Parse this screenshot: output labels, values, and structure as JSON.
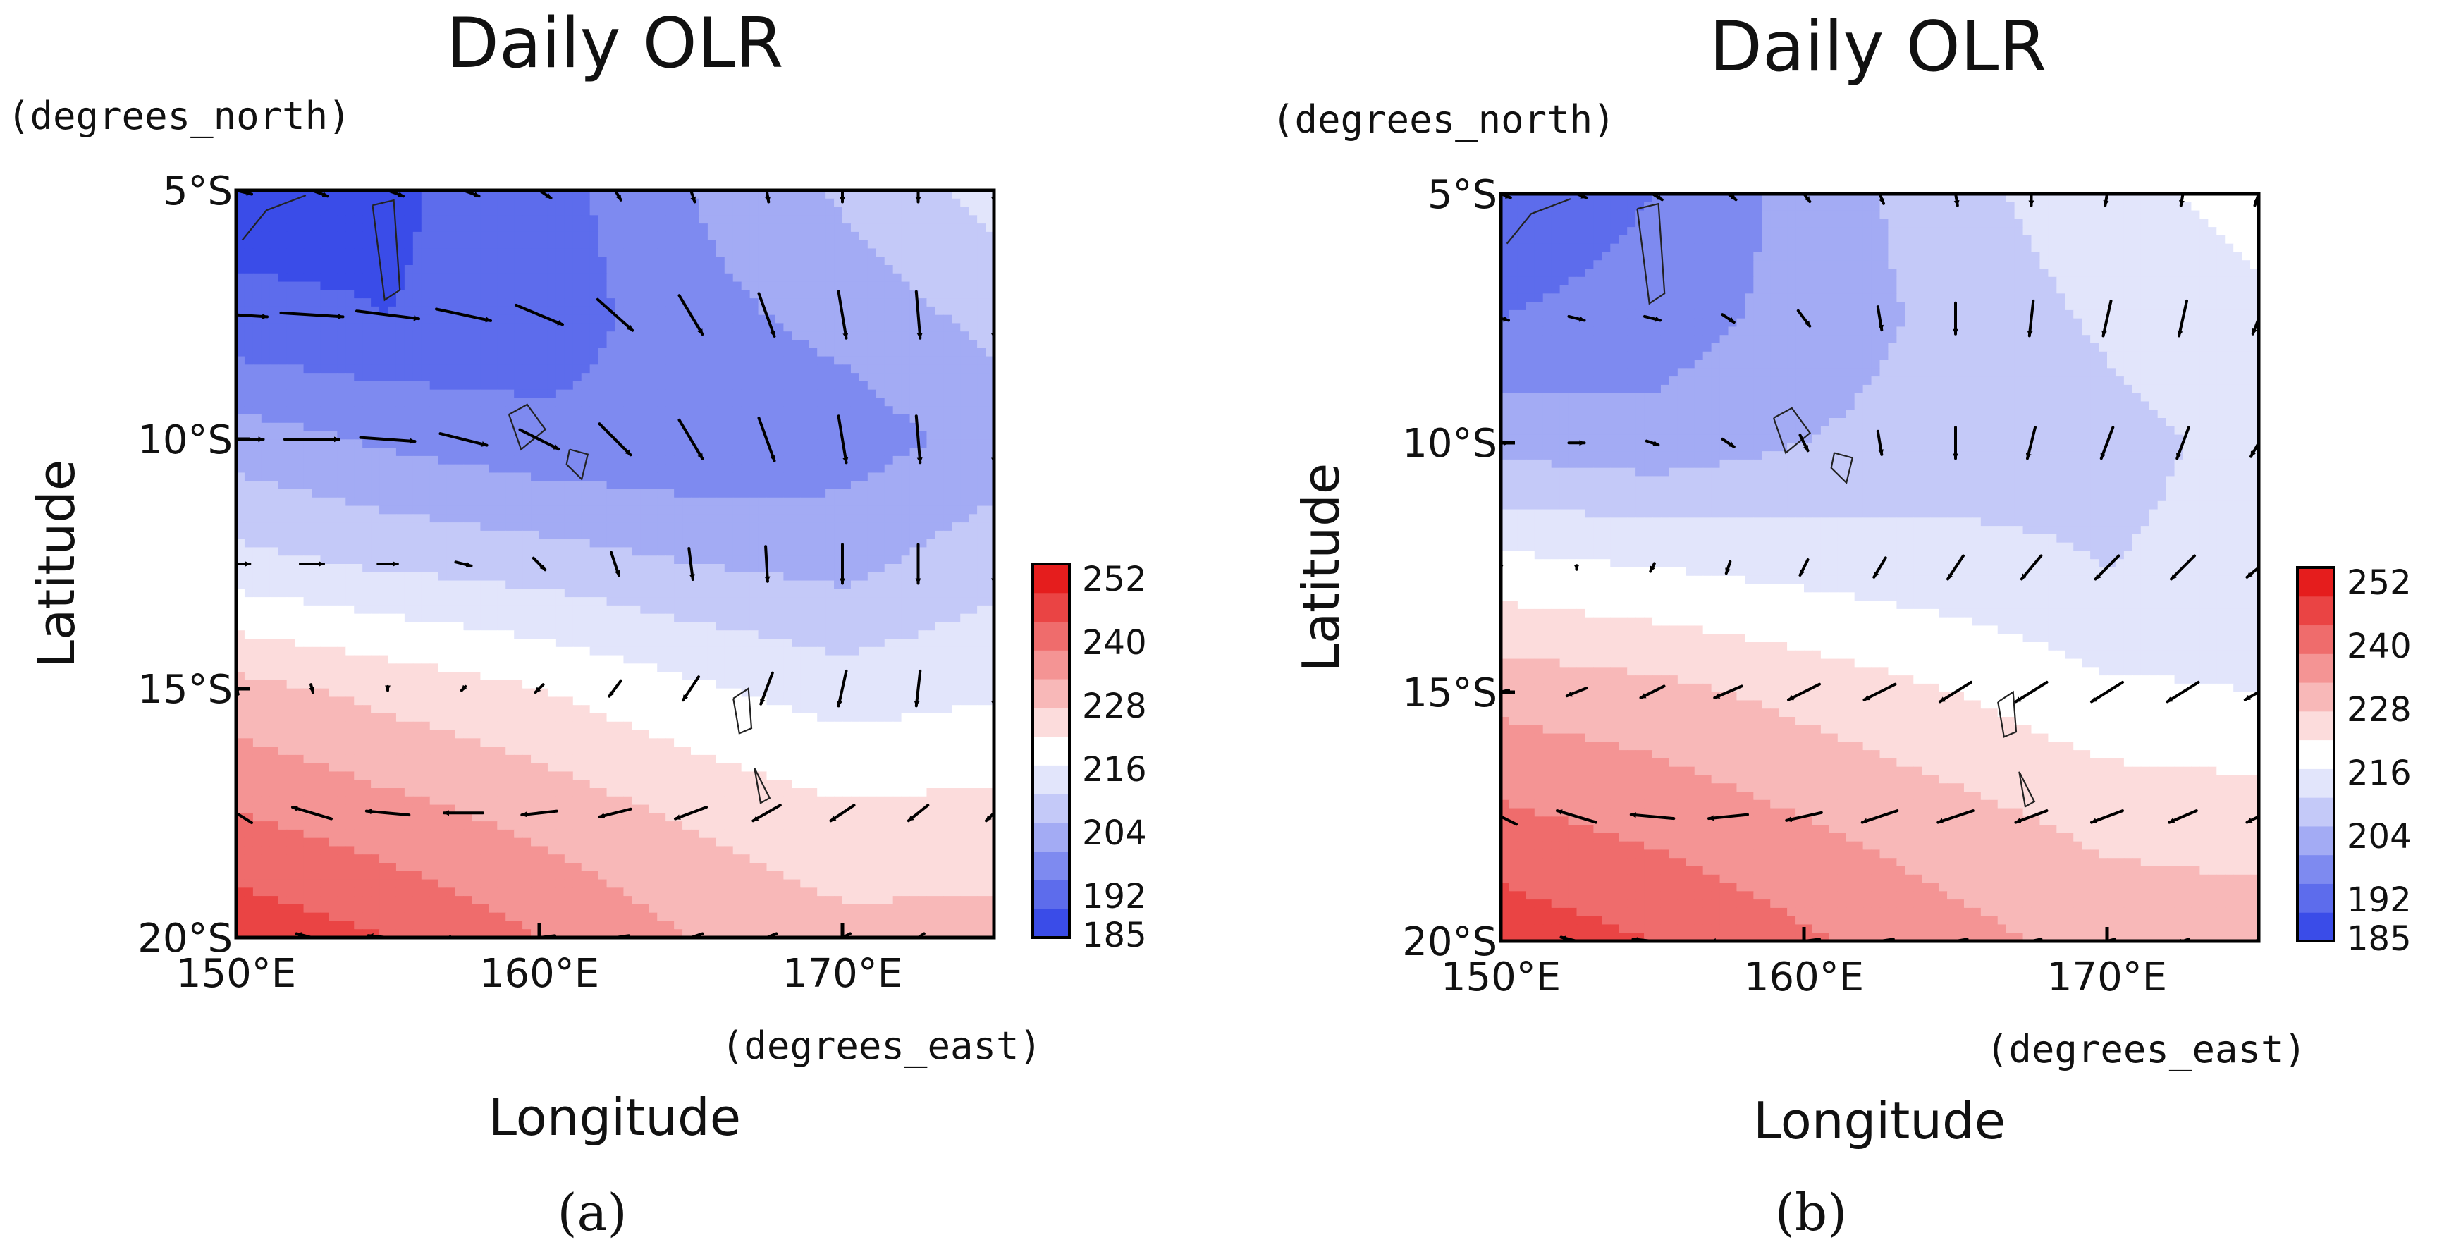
{
  "chart_data": [
    {
      "type": "heatmap",
      "panel_label": "(a)",
      "title": "Daily OLR",
      "xlabel": "Longitude",
      "ylabel": "Latitude",
      "x_units": "(degrees_east)",
      "y_units": "(degrees_north)",
      "x_ticks": [
        "150°E",
        "160°E",
        "170°E"
      ],
      "y_ticks": [
        "5°S",
        "10°S",
        "15°S",
        "20°S"
      ],
      "xlim": [
        150,
        175
      ],
      "ylim": [
        -20,
        -5
      ],
      "colorbar": {
        "ticks": [
          "252",
          "240",
          "228",
          "216",
          "204",
          "192",
          "185"
        ],
        "levels": [
          185,
          192,
          198,
          204,
          210,
          216,
          222,
          228,
          234,
          240,
          246,
          252,
          258
        ],
        "colors": [
          "#3a4ce8",
          "#5d6cec",
          "#7e8af0",
          "#a3abf4",
          "#c4c9f8",
          "#e2e5fb",
          "#ffffff",
          "#fcdcdc",
          "#f8b8b8",
          "#f49494",
          "#ef6c6c",
          "#ea4444",
          "#e51d1d"
        ]
      },
      "olr_field": {
        "longitudes": [
          150,
          155,
          160,
          165,
          170,
          175
        ],
        "latitudes": [
          -5,
          -7.5,
          -10,
          -12.5,
          -15,
          -17.5,
          -20
        ],
        "values": [
          [
            190,
            191,
            195,
            204,
            211,
            218
          ],
          [
            193,
            192,
            194,
            202,
            206,
            212
          ],
          [
            207,
            203,
            200,
            199,
            201,
            206
          ],
          [
            218,
            215,
            213,
            210,
            208,
            214
          ],
          [
            236,
            232,
            228,
            223,
            219,
            221
          ],
          [
            246,
            242,
            238,
            233,
            229,
            230
          ],
          [
            256,
            252,
            246,
            240,
            236,
            236
          ]
        ]
      },
      "wind_vectors": {
        "lons": [
          150,
          152.5,
          155,
          157.5,
          160,
          162.5,
          165,
          167.5,
          170,
          172.5,
          175
        ],
        "lats": [
          -5,
          -7.5,
          -10,
          -12.5,
          -15,
          -17.5,
          -20
        ],
        "u": [
          [
            0.8,
            0.8,
            0.8,
            0.8,
            0.6,
            0.3,
            0.2,
            0.1,
            0.0,
            0.0,
            0.0
          ],
          [
            1.6,
            1.6,
            1.6,
            1.4,
            1.2,
            0.9,
            0.6,
            0.4,
            0.2,
            0.1,
            0.0
          ],
          [
            1.4,
            1.4,
            1.4,
            1.2,
            1.0,
            0.8,
            0.6,
            0.4,
            0.2,
            0.1,
            0.0
          ],
          [
            0.7,
            0.6,
            0.5,
            0.4,
            0.3,
            0.2,
            0.1,
            0.05,
            0.0,
            0.0,
            0.0
          ],
          [
            0.1,
            0.05,
            0.0,
            -0.1,
            -0.2,
            -0.3,
            -0.4,
            -0.3,
            -0.2,
            -0.1,
            0.0
          ],
          [
            -0.8,
            -1.0,
            -1.1,
            -1.0,
            -0.9,
            -0.8,
            -0.8,
            -0.7,
            -0.6,
            -0.5,
            -0.4
          ],
          [
            -0.6,
            -0.8,
            -1.0,
            -0.9,
            -0.8,
            -0.7,
            -0.6,
            -0.5,
            -0.4,
            -0.3,
            -0.3
          ]
        ],
        "v": [
          [
            -0.2,
            -0.3,
            -0.3,
            -0.3,
            -0.4,
            -0.5,
            -0.6,
            -0.6,
            -0.6,
            -0.6,
            -0.6
          ],
          [
            -0.1,
            -0.1,
            -0.2,
            -0.3,
            -0.5,
            -0.8,
            -1.0,
            -1.1,
            -1.2,
            -1.2,
            -1.2
          ],
          [
            0.0,
            0.0,
            -0.1,
            -0.3,
            -0.5,
            -0.8,
            -1.0,
            -1.1,
            -1.2,
            -1.2,
            -1.2
          ],
          [
            0.0,
            0.0,
            0.0,
            -0.1,
            -0.3,
            -0.6,
            -0.8,
            -0.9,
            -1.0,
            -1.0,
            -1.0
          ],
          [
            -0.3,
            -0.2,
            -0.1,
            -0.1,
            -0.2,
            -0.4,
            -0.6,
            -0.8,
            -0.9,
            -0.9,
            -0.9
          ],
          [
            0.5,
            0.3,
            0.1,
            0.0,
            -0.1,
            -0.2,
            -0.3,
            -0.4,
            -0.4,
            -0.4,
            -0.4
          ],
          [
            0.3,
            0.2,
            0.1,
            0.0,
            -0.1,
            -0.1,
            -0.2,
            -0.2,
            -0.2,
            -0.2,
            -0.2
          ]
        ]
      }
    },
    {
      "type": "heatmap",
      "panel_label": "(b)",
      "title": "Daily OLR",
      "xlabel": "Longitude",
      "ylabel": "Latitude",
      "x_units": "(degrees_east)",
      "y_units": "(degrees_north)",
      "x_ticks": [
        "150°E",
        "160°E",
        "170°E"
      ],
      "y_ticks": [
        "5°S",
        "10°S",
        "15°S",
        "20°S"
      ],
      "xlim": [
        150,
        175
      ],
      "ylim": [
        -20,
        -5
      ],
      "colorbar": {
        "ticks": [
          "252",
          "240",
          "228",
          "216",
          "204",
          "192",
          "185"
        ],
        "levels": [
          185,
          192,
          198,
          204,
          210,
          216,
          222,
          228,
          234,
          240,
          246,
          252,
          258
        ],
        "colors": [
          "#3a4ce8",
          "#5d6cec",
          "#7e8af0",
          "#a3abf4",
          "#c4c9f8",
          "#e2e5fb",
          "#ffffff",
          "#fcdcdc",
          "#f8b8b8",
          "#f49494",
          "#ef6c6c",
          "#ea4444",
          "#e51d1d"
        ]
      },
      "olr_field": {
        "longitudes": [
          150,
          155,
          160,
          165,
          170,
          175
        ],
        "latitudes": [
          -5,
          -7.5,
          -10,
          -12.5,
          -15,
          -17.5,
          -20
        ],
        "values": [
          [
            192,
            198,
            206,
            214,
            220,
            224
          ],
          [
            198,
            201,
            206,
            212,
            217,
            221
          ],
          [
            208,
            206,
            210,
            213,
            214,
            218
          ],
          [
            224,
            222,
            220,
            218,
            216,
            218
          ],
          [
            238,
            236,
            232,
            228,
            223,
            222
          ],
          [
            247,
            244,
            240,
            236,
            232,
            231
          ],
          [
            256,
            252,
            247,
            242,
            238,
            237
          ]
        ]
      },
      "wind_vectors": {
        "lons": [
          150,
          152.5,
          155,
          157.5,
          160,
          162.5,
          165,
          167.5,
          170,
          172.5,
          175
        ],
        "lats": [
          -5,
          -7.5,
          -10,
          -12.5,
          -15,
          -17.5,
          -20
        ],
        "u": [
          [
            0.5,
            0.5,
            0.5,
            0.4,
            0.3,
            0.2,
            0.1,
            0.0,
            -0.1,
            -0.1,
            -0.2
          ],
          [
            0.4,
            0.4,
            0.4,
            0.3,
            0.3,
            0.1,
            0.0,
            -0.1,
            -0.2,
            -0.2,
            -0.3
          ],
          [
            0.4,
            0.4,
            0.3,
            0.3,
            0.2,
            0.1,
            0.0,
            -0.2,
            -0.3,
            -0.3,
            -0.4
          ],
          [
            0.0,
            0.0,
            -0.1,
            -0.1,
            -0.2,
            -0.3,
            -0.4,
            -0.5,
            -0.6,
            -0.6,
            -0.6
          ],
          [
            -0.4,
            -0.5,
            -0.6,
            -0.7,
            -0.8,
            -0.8,
            -0.8,
            -0.8,
            -0.8,
            -0.8,
            -0.7
          ],
          [
            -0.8,
            -1.0,
            -1.1,
            -1.0,
            -0.9,
            -0.9,
            -0.9,
            -0.8,
            -0.8,
            -0.7,
            -0.6
          ],
          [
            -0.6,
            -0.8,
            -1.0,
            -0.9,
            -0.8,
            -0.7,
            -0.6,
            -0.5,
            -0.4,
            -0.3,
            -0.3
          ]
        ],
        "v": [
          [
            -0.2,
            -0.2,
            -0.3,
            -0.3,
            -0.4,
            -0.5,
            -0.6,
            -0.6,
            -0.6,
            -0.6,
            -0.6
          ],
          [
            -0.1,
            -0.1,
            -0.1,
            -0.2,
            -0.4,
            -0.6,
            -0.8,
            -0.9,
            -0.9,
            -0.9,
            -0.8
          ],
          [
            0.0,
            0.0,
            -0.1,
            -0.2,
            -0.4,
            -0.6,
            -0.8,
            -0.8,
            -0.8,
            -0.8,
            -0.7
          ],
          [
            -0.1,
            -0.1,
            -0.2,
            -0.3,
            -0.4,
            -0.5,
            -0.6,
            -0.6,
            -0.6,
            -0.6,
            -0.5
          ],
          [
            -0.1,
            -0.2,
            -0.3,
            -0.3,
            -0.4,
            -0.4,
            -0.5,
            -0.5,
            -0.5,
            -0.5,
            -0.4
          ],
          [
            0.4,
            0.3,
            0.1,
            -0.1,
            -0.2,
            -0.3,
            -0.3,
            -0.3,
            -0.3,
            -0.3,
            -0.3
          ],
          [
            0.3,
            0.2,
            0.1,
            0.0,
            -0.1,
            -0.1,
            -0.1,
            -0.1,
            -0.1,
            -0.1,
            -0.1
          ]
        ]
      }
    }
  ]
}
